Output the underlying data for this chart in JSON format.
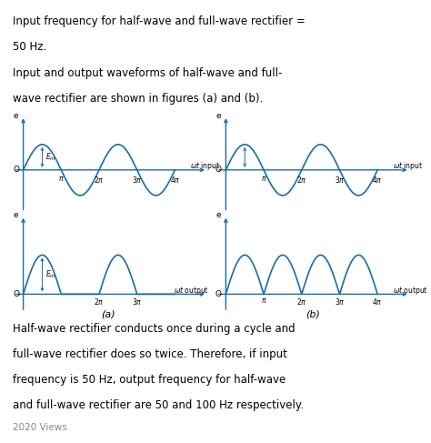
{
  "background_color": "#ffffff",
  "text_color": "#000000",
  "wave_color": "#1a6ca8",
  "axis_color": "#1a6ca8",
  "sep_line_color": "#9b8ea0",
  "header_text_line1": "Input frequency for half-wave and full-wave rectifier =",
  "header_text_line2": "50 Hz.",
  "header_text_line3": "Input and output waveforms of half-wave and full-",
  "header_text_line4": "wave rectifier are shown in figures (a) and (b).",
  "footer_line1": "Half-wave rectifier conducts once during a cycle and",
  "footer_line2": "full-wave rectifier does so twice. Therefore, if input",
  "footer_line3": "frequency is 50 Hz, output frequency for half-wave",
  "footer_line4": "and full-wave rectifier are 50 and 100 Hz respectively.",
  "bottom_text": "2020 Views",
  "fig_label_a": "(a)",
  "fig_label_b": "(b)",
  "font_size_body": 8.5,
  "font_size_small": 6.5,
  "font_size_tiny": 6.0,
  "font_size_label_ab": 8.0
}
